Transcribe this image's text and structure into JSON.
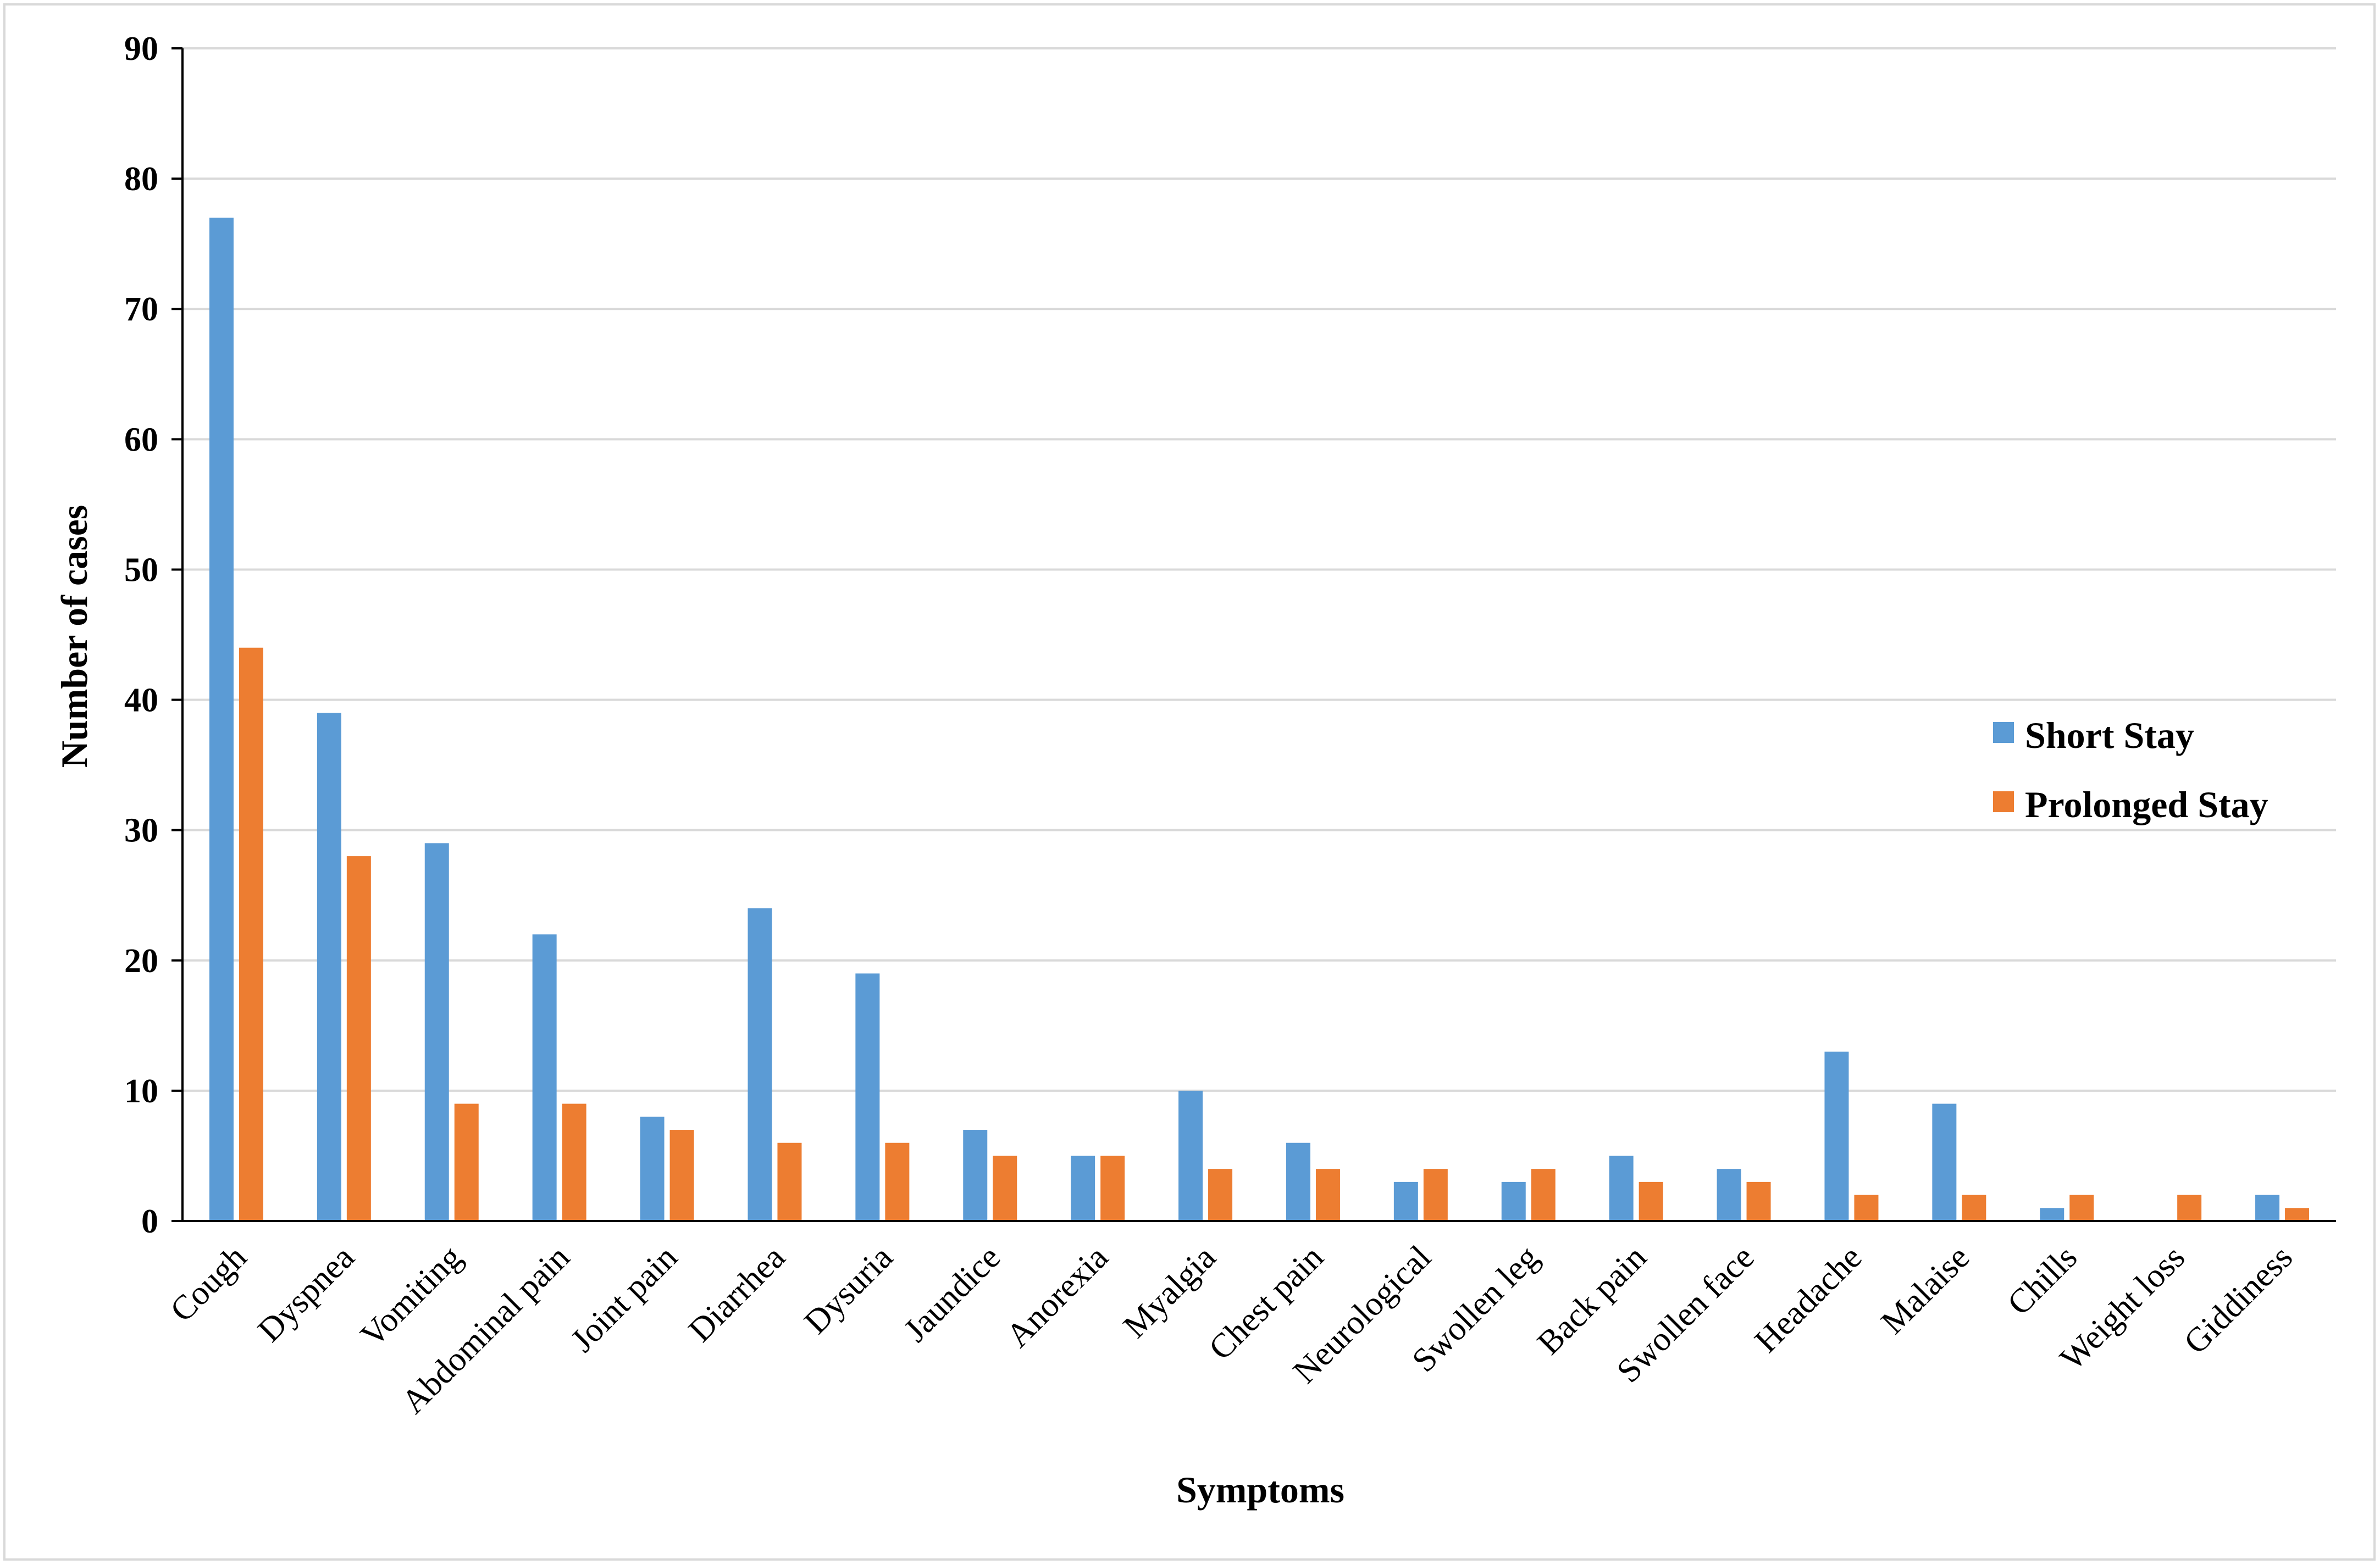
{
  "chart_data": {
    "type": "bar",
    "title": "",
    "xlabel": "Symptoms",
    "ylabel": "Number of cases",
    "ylim": [
      0,
      90
    ],
    "yticks": [
      0,
      10,
      20,
      30,
      40,
      50,
      60,
      70,
      80,
      90
    ],
    "grid": true,
    "legend_position": "right",
    "categories": [
      "Cough",
      "Dyspnea",
      "Vomiting",
      "Abdominal pain",
      "Joint pain",
      "Diarrhea",
      "Dysuria",
      "Jaundice",
      "Anorexia",
      "Myalgia",
      "Chest pain",
      "Neurological",
      "Swollen leg",
      "Back pain",
      "Swollen face",
      "Headache",
      "Malaise",
      "Chills",
      "Weight loss",
      "Giddiness"
    ],
    "series": [
      {
        "name": "Short Stay",
        "color": "#5b9bd5",
        "values": [
          77,
          39,
          29,
          22,
          8,
          24,
          19,
          7,
          5,
          10,
          6,
          3,
          3,
          5,
          4,
          13,
          9,
          1,
          0,
          2
        ]
      },
      {
        "name": "Prolonged Stay",
        "color": "#ed7d31",
        "values": [
          44,
          28,
          9,
          9,
          7,
          6,
          6,
          5,
          5,
          4,
          4,
          4,
          4,
          3,
          3,
          2,
          2,
          2,
          2,
          1
        ]
      }
    ]
  }
}
